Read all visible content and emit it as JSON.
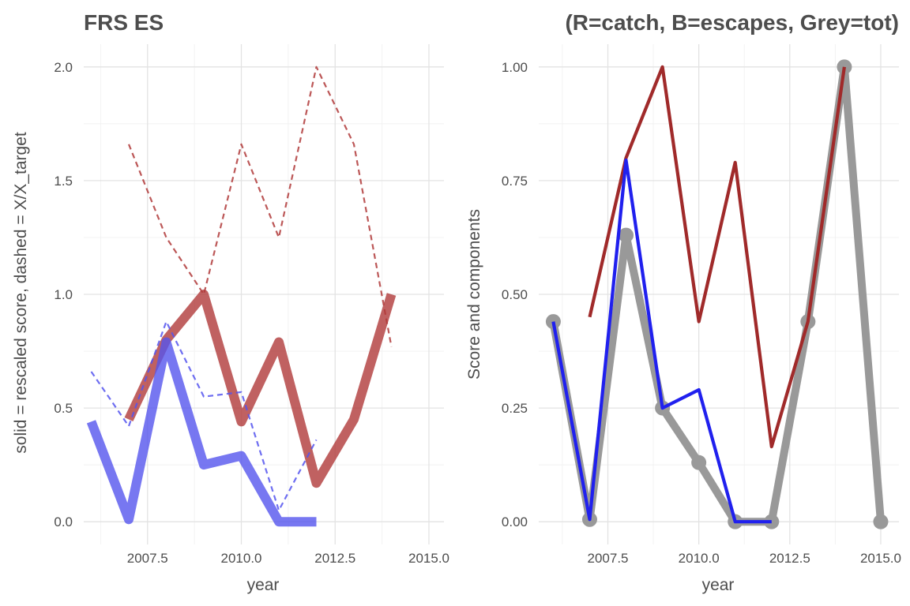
{
  "chart_data": [
    {
      "type": "line",
      "title": "FRS ES",
      "xlabel": "year",
      "ylabel": "solid = rescaled score, dashed = X/X_target",
      "xlim": [
        2005.8,
        2015.4
      ],
      "ylim": [
        -0.1,
        2.1
      ],
      "x_ticks": [
        2007.5,
        2010.0,
        2012.5,
        2015.0
      ],
      "x_tick_labels": [
        "2007.5",
        "2010.0",
        "2012.5",
        "2015.0"
      ],
      "y_ticks": [
        0.0,
        0.5,
        1.0,
        1.5,
        2.0
      ],
      "y_tick_labels": [
        "0.0",
        "0.5",
        "1.0",
        "1.5",
        "2.0"
      ],
      "grid": true,
      "series": [
        {
          "style": "solid-thick",
          "color": "#b03a3a",
          "x": [
            2007,
            2008,
            2009,
            2010,
            2011,
            2012,
            2013,
            2014
          ],
          "y": [
            0.45,
            0.8,
            1.0,
            0.44,
            0.79,
            0.17,
            0.45,
            1.0
          ]
        },
        {
          "style": "solid-thick",
          "color": "#5555ee",
          "x": [
            2006,
            2007,
            2008,
            2009,
            2010,
            2011,
            2012
          ],
          "y": [
            0.44,
            0.01,
            0.79,
            0.25,
            0.29,
            0.0,
            0.0
          ]
        },
        {
          "style": "dashed",
          "color": "#b03a3a",
          "x": [
            2007,
            2008,
            2009,
            2010,
            2011,
            2012,
            2013,
            2014
          ],
          "y": [
            1.66,
            1.25,
            1.0,
            1.66,
            1.25,
            2.0,
            1.66,
            0.77
          ]
        },
        {
          "style": "dashed",
          "color": "#5555ee",
          "x": [
            2006,
            2007,
            2008,
            2009,
            2010,
            2011,
            2012
          ],
          "y": [
            0.66,
            0.42,
            0.88,
            0.55,
            0.57,
            0.05,
            0.36
          ]
        }
      ]
    },
    {
      "type": "line",
      "title": "(R=catch, B=escapes, Grey=tot)",
      "xlabel": "year",
      "ylabel": "Score and components",
      "xlim": [
        2005.6,
        2015.5
      ],
      "ylim": [
        -0.05,
        1.05
      ],
      "x_ticks": [
        2007.5,
        2010.0,
        2012.5,
        2015.0
      ],
      "x_tick_labels": [
        "2007.5",
        "2010.0",
        "2012.5",
        "2015.0"
      ],
      "y_ticks": [
        0.0,
        0.25,
        0.5,
        0.75,
        1.0
      ],
      "y_tick_labels": [
        "0.00",
        "0.25",
        "0.50",
        "0.75",
        "1.00"
      ],
      "grid": true,
      "series": [
        {
          "style": "solid-thick-points",
          "color": "#999999",
          "x": [
            2006,
            2007,
            2008,
            2009,
            2010,
            2011,
            2012,
            2013,
            2014,
            2015
          ],
          "y": [
            0.44,
            0.005,
            0.63,
            0.25,
            0.13,
            0.0,
            0.0,
            0.44,
            1.0,
            0.0
          ]
        },
        {
          "style": "solid",
          "color": "#a02a2a",
          "x": [
            2007,
            2008,
            2009,
            2010,
            2011,
            2012,
            2013,
            2014
          ],
          "y": [
            0.45,
            0.8,
            1.0,
            0.44,
            0.79,
            0.165,
            0.44,
            1.0
          ]
        },
        {
          "style": "solid",
          "color": "#2020ee",
          "x": [
            2006,
            2007,
            2008,
            2009,
            2010,
            2011,
            2012
          ],
          "y": [
            0.44,
            0.005,
            0.795,
            0.25,
            0.29,
            0.0,
            0.0
          ]
        }
      ]
    }
  ]
}
